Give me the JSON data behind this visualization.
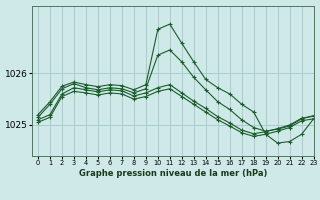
{
  "title": "Graphe pression niveau de la mer (hPa)",
  "background_color": "#cfe9e9",
  "grid_color": "#a8cccc",
  "line_color": "#1a5c2a",
  "xlim": [
    -0.5,
    23
  ],
  "ylim": [
    1024.4,
    1027.3
  ],
  "yticks": [
    1025,
    1026
  ],
  "xticks": [
    0,
    1,
    2,
    3,
    4,
    5,
    6,
    7,
    8,
    9,
    10,
    11,
    12,
    13,
    14,
    15,
    16,
    17,
    18,
    19,
    20,
    21,
    22,
    23
  ],
  "series": [
    [
      1025.05,
      1025.15,
      1025.55,
      1025.65,
      1025.62,
      1025.58,
      1025.62,
      1025.6,
      1025.5,
      1025.55,
      1025.65,
      1025.7,
      1025.55,
      1025.4,
      1025.25,
      1025.1,
      1024.98,
      1024.85,
      1024.78,
      1024.82,
      1024.88,
      1024.95,
      1025.08,
      1025.12
    ],
    [
      1025.1,
      1025.2,
      1025.6,
      1025.72,
      1025.68,
      1025.64,
      1025.68,
      1025.66,
      1025.56,
      1025.62,
      1025.72,
      1025.78,
      1025.62,
      1025.46,
      1025.32,
      1025.16,
      1025.04,
      1024.9,
      1024.83,
      1024.87,
      1024.93,
      1025.0,
      1025.13,
      1025.17
    ],
    [
      1025.15,
      1025.4,
      1025.7,
      1025.8,
      1025.72,
      1025.68,
      1025.72,
      1025.7,
      1025.62,
      1025.7,
      1026.35,
      1026.45,
      1026.22,
      1025.92,
      1025.68,
      1025.45,
      1025.3,
      1025.1,
      1024.95,
      1024.88,
      1024.92,
      1024.98,
      1025.12,
      1025.18
    ],
    [
      1025.2,
      1025.45,
      1025.75,
      1025.83,
      1025.78,
      1025.74,
      1025.78,
      1025.76,
      1025.68,
      1025.78,
      1026.85,
      1026.95,
      1026.58,
      1026.22,
      1025.88,
      1025.72,
      1025.6,
      1025.4,
      1025.25,
      1024.82,
      1024.65,
      1024.68,
      1024.82,
      1025.12
    ]
  ]
}
